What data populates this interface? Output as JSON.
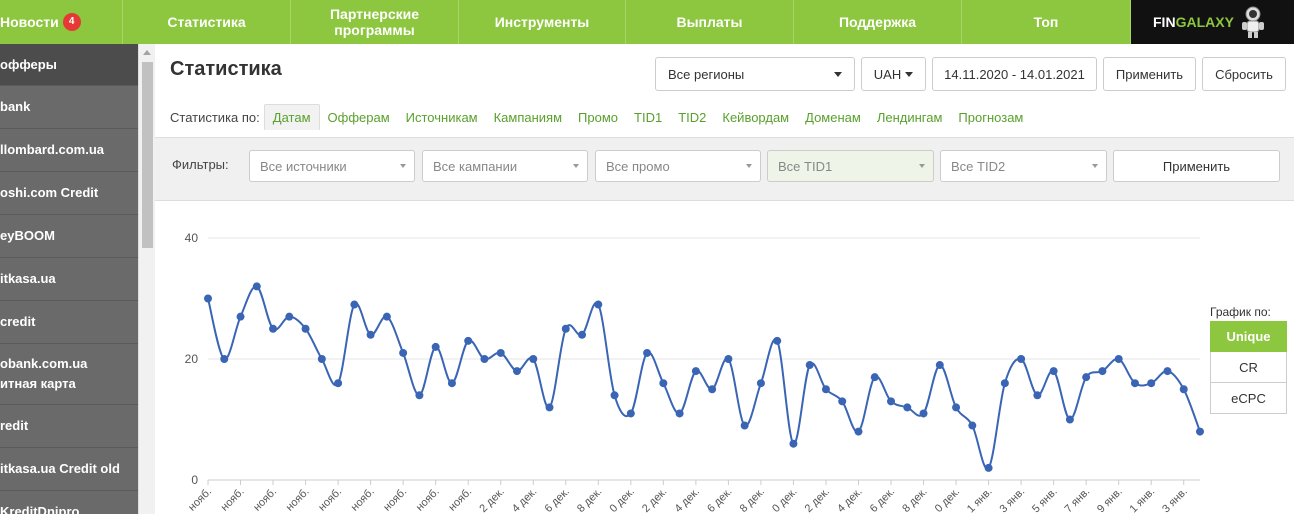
{
  "topnav": {
    "news": "Новости",
    "news_badge": "4",
    "statistics": "Статистика",
    "partner_programs": "Партнерские программы",
    "tools": "Инструменты",
    "payouts": "Выплаты",
    "support": "Поддержка",
    "top": "Топ",
    "logo_fin": "FIN",
    "logo_galaxy": "GALAXY"
  },
  "sidebar": {
    "items": [
      {
        "label": "офферы"
      },
      {
        "label": "bank"
      },
      {
        "label": "llombard.com.ua"
      },
      {
        "label": "oshi.com Credit"
      },
      {
        "label": "eyBOOM"
      },
      {
        "label": "itkasa.ua"
      },
      {
        "label": "credit"
      },
      {
        "label": "obank.com.ua",
        "label2": "итная карта"
      },
      {
        "label": "redit"
      },
      {
        "label": "itkasa.ua Credit old"
      },
      {
        "label": "KreditDnipro"
      }
    ]
  },
  "header": {
    "title": "Статистика",
    "region": "Все регионы",
    "currency": "UAH",
    "date_range": "14.11.2020 - 14.01.2021",
    "apply": "Применить",
    "reset": "Сбросить"
  },
  "tabs": {
    "label": "Статистика по:",
    "items": [
      "Датам",
      "Офферам",
      "Источникам",
      "Кампаниям",
      "Промо",
      "TID1",
      "TID2",
      "Кейвордам",
      "Доменам",
      "Лендингам",
      "Прогнозам"
    ]
  },
  "filters": {
    "label": "Фильтры:",
    "sources": "Все источники",
    "campaigns": "Все кампании",
    "promo": "Все промо",
    "tid1": "Все TID1",
    "tid2": "Все TID2",
    "apply": "Применить"
  },
  "graph_by": {
    "label": "График по:",
    "options": [
      "Unique",
      "CR",
      "eCPC"
    ]
  },
  "colors": {
    "accent": "#8dc63f",
    "line": "#3a65b5"
  },
  "chart_data": {
    "type": "line",
    "ylim": [
      0,
      40
    ],
    "yticks": [
      0,
      20,
      40
    ],
    "grid": true,
    "x_tick_labels": [
      "нояб.",
      "нояб.",
      "нояб.",
      "нояб.",
      "нояб.",
      "нояб.",
      "нояб.",
      "нояб.",
      "нояб.",
      "2 дек.",
      "4 дек.",
      "6 дек.",
      "8 дек.",
      "0 дек.",
      "2 дек.",
      "4 дек.",
      "6 дек.",
      "8 дек.",
      "0 дек.",
      "2 дек.",
      "4 дек.",
      "6 дек.",
      "8 дек.",
      "0 дек.",
      "1 янв.",
      "3 янв.",
      "5 янв.",
      "7 янв.",
      "9 янв.",
      "1 янв.",
      "3 янв."
    ],
    "values": [
      30,
      20,
      27,
      32,
      25,
      27,
      25,
      20,
      16,
      29,
      24,
      27,
      21,
      14,
      22,
      16,
      23,
      20,
      21,
      18,
      20,
      12,
      25,
      24,
      29,
      14,
      11,
      21,
      16,
      11,
      18,
      15,
      20,
      9,
      16,
      23,
      6,
      19,
      15,
      13,
      8,
      17,
      13,
      12,
      11,
      19,
      12,
      9,
      2,
      16,
      20,
      14,
      18,
      10,
      17,
      18,
      20,
      16,
      16,
      18,
      15,
      8
    ]
  }
}
